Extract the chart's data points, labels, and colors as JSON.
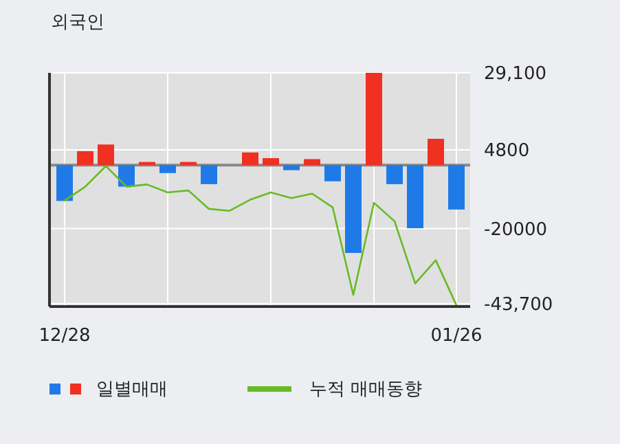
{
  "chart_data": {
    "type": "bar",
    "title": "외국인",
    "categories": [
      "12/28",
      null,
      null,
      null,
      null,
      null,
      null,
      null,
      null,
      null,
      null,
      null,
      null,
      null,
      null,
      null,
      null,
      null,
      null,
      "01/26"
    ],
    "series": [
      {
        "name": "일별매매",
        "values": [
          -11300,
          4400,
          6500,
          -6800,
          1000,
          -2500,
          1000,
          -6000,
          0,
          4000,
          2200,
          -1600,
          1900,
          -5100,
          -27700,
          29100,
          -6000,
          -19900,
          8300,
          -14000
        ],
        "colors": [
          "#1f7ae8",
          "#f03020",
          "#f03020",
          "#1f7ae8",
          "#f03020",
          "#1f7ae8",
          "#f03020",
          "#1f7ae8",
          "#f03020",
          "#f03020",
          "#f03020",
          "#1f7ae8",
          "#f03020",
          "#1f7ae8",
          "#1f7ae8",
          "#f03020",
          "#1f7ae8",
          "#1f7ae8",
          "#f03020",
          "#1f7ae8"
        ]
      },
      {
        "name": "누적 매매동향",
        "type": "line",
        "color": "#66bb22",
        "values": [
          -11200,
          -6800,
          -300,
          -6800,
          -6100,
          -8600,
          -8000,
          -13800,
          -14400,
          -10900,
          -8600,
          -10400,
          -9000,
          -13300,
          -40900,
          -11900,
          -17700,
          -37300,
          -30000,
          -44200
        ]
      }
    ],
    "ylim": [
      -44600,
      29100
    ],
    "yticks": [
      {
        "value": 29100,
        "label": "29,100"
      },
      4800,
      -20000,
      {
        "value": -43700,
        "label": "-43,700"
      }
    ],
    "grid": true,
    "legend": "bottom"
  }
}
